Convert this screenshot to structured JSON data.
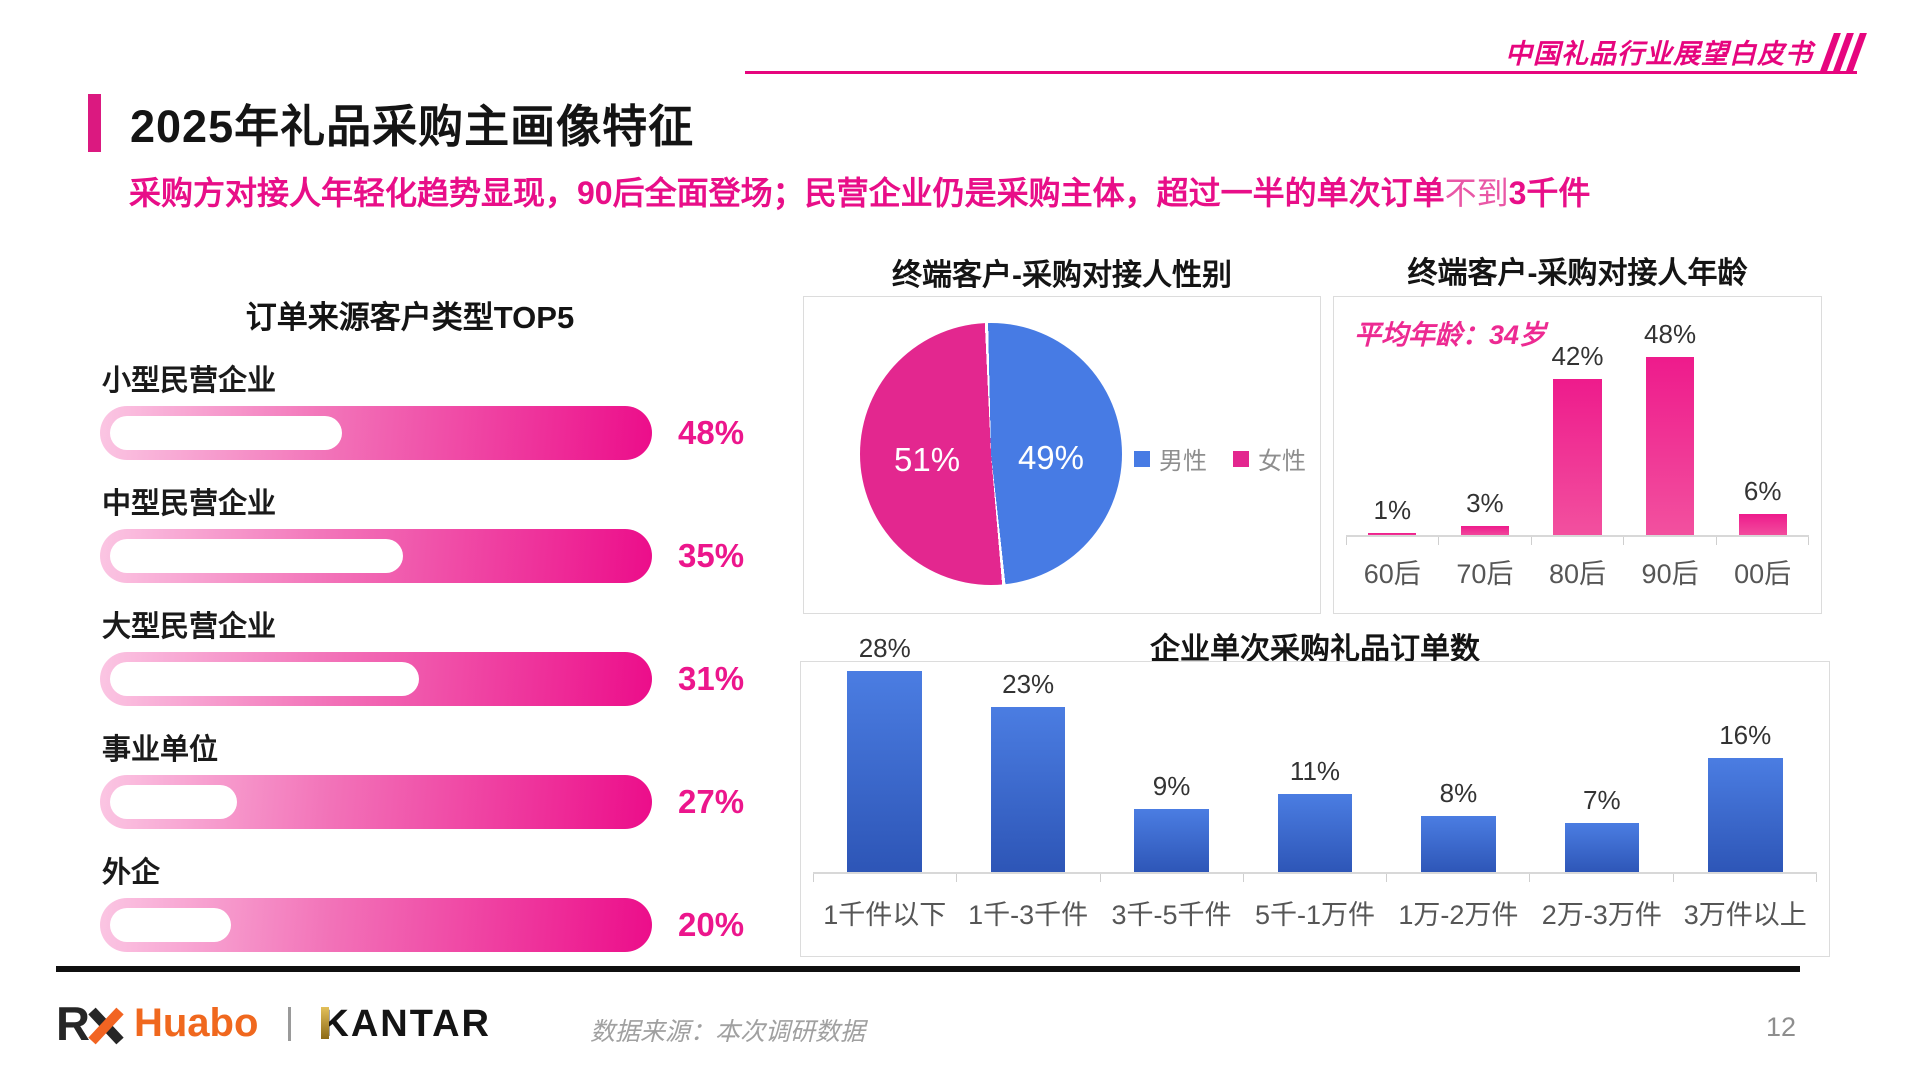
{
  "page": {
    "background": "#ffffff",
    "page_number": "12"
  },
  "header": {
    "watermark_title": "中国礼品行业展望白皮书",
    "accent_color": "#e6057e"
  },
  "title_block": {
    "title": "2025年礼品采购主画像特征",
    "subtitle_parts": [
      {
        "text": "采购方对接人年轻化趋势显现，90后全面登场；民营企业仍是采购主体，超过一半的单次订单",
        "bold": true
      },
      {
        "text": "不到",
        "bold": false
      },
      {
        "text": "3千件",
        "bold": true
      }
    ],
    "subtitle_color": "#e80e88"
  },
  "footer": {
    "logo_rx": "R",
    "logo_huabo": "Huabo",
    "logo_kantar": "KANTAR",
    "source_note": "数据来源：本次调研数据",
    "page_number": "12"
  },
  "colors": {
    "brand_pink": "#e6057e",
    "value_pink": "#ec168c",
    "bar_blue": "#3f6fd6",
    "pie_blue": "#477be4",
    "pie_pink": "#e3278f",
    "text_dark": "#141414",
    "text_gray": "#8e8e8e"
  },
  "chart_data": [
    {
      "id": "top5",
      "type": "bar",
      "orientation": "horizontal",
      "title": "订单来源客户类型TOP5",
      "categories": [
        "小型民营企业",
        "中型民营企业",
        "大型民营企业",
        "事业单位",
        "外企"
      ],
      "values": [
        48,
        35,
        31,
        27,
        20
      ],
      "unit": "%",
      "bar_gradient": [
        "#fbc6e3",
        "#f272b8",
        "#ec0d8a"
      ],
      "highlight_width_pct": [
        42,
        53,
        56,
        23,
        22
      ],
      "value_label_color": "#ec168c",
      "grid": false
    },
    {
      "id": "gender",
      "type": "pie",
      "title": "终端客户-采购对接人性别",
      "slices": [
        {
          "label": "男性",
          "value": 49,
          "color": "#477be4"
        },
        {
          "label": "女性",
          "value": 51,
          "color": "#e3278f"
        }
      ],
      "unit": "%",
      "label_color": "#ffffff",
      "legend_position": "right",
      "start_angle": "top",
      "direction": "clockwise"
    },
    {
      "id": "age",
      "type": "bar",
      "orientation": "vertical",
      "title": "终端客户-采购对接人年龄",
      "annotation": "平均年龄：34岁",
      "categories": [
        "60后",
        "70后",
        "80后",
        "90后",
        "00后"
      ],
      "values": [
        1,
        3,
        42,
        48,
        6
      ],
      "unit": "%",
      "ylim": [
        0,
        50
      ],
      "bar_gradient": [
        "#ee1b8c",
        "#f2519f"
      ],
      "grid": false
    },
    {
      "id": "orders",
      "type": "bar",
      "orientation": "vertical",
      "title": "企业单次采购礼品订单数",
      "categories": [
        "1千件以下",
        "1千-3千件",
        "3千-5千件",
        "5千-1万件",
        "1万-2万件",
        "2万-3万件",
        "3万件以上"
      ],
      "values": [
        28,
        23,
        9,
        11,
        8,
        7,
        16
      ],
      "unit": "%",
      "ylim": [
        0,
        30
      ],
      "bar_gradient": [
        "#4b7de2",
        "#2d55b6"
      ],
      "grid": false
    }
  ]
}
